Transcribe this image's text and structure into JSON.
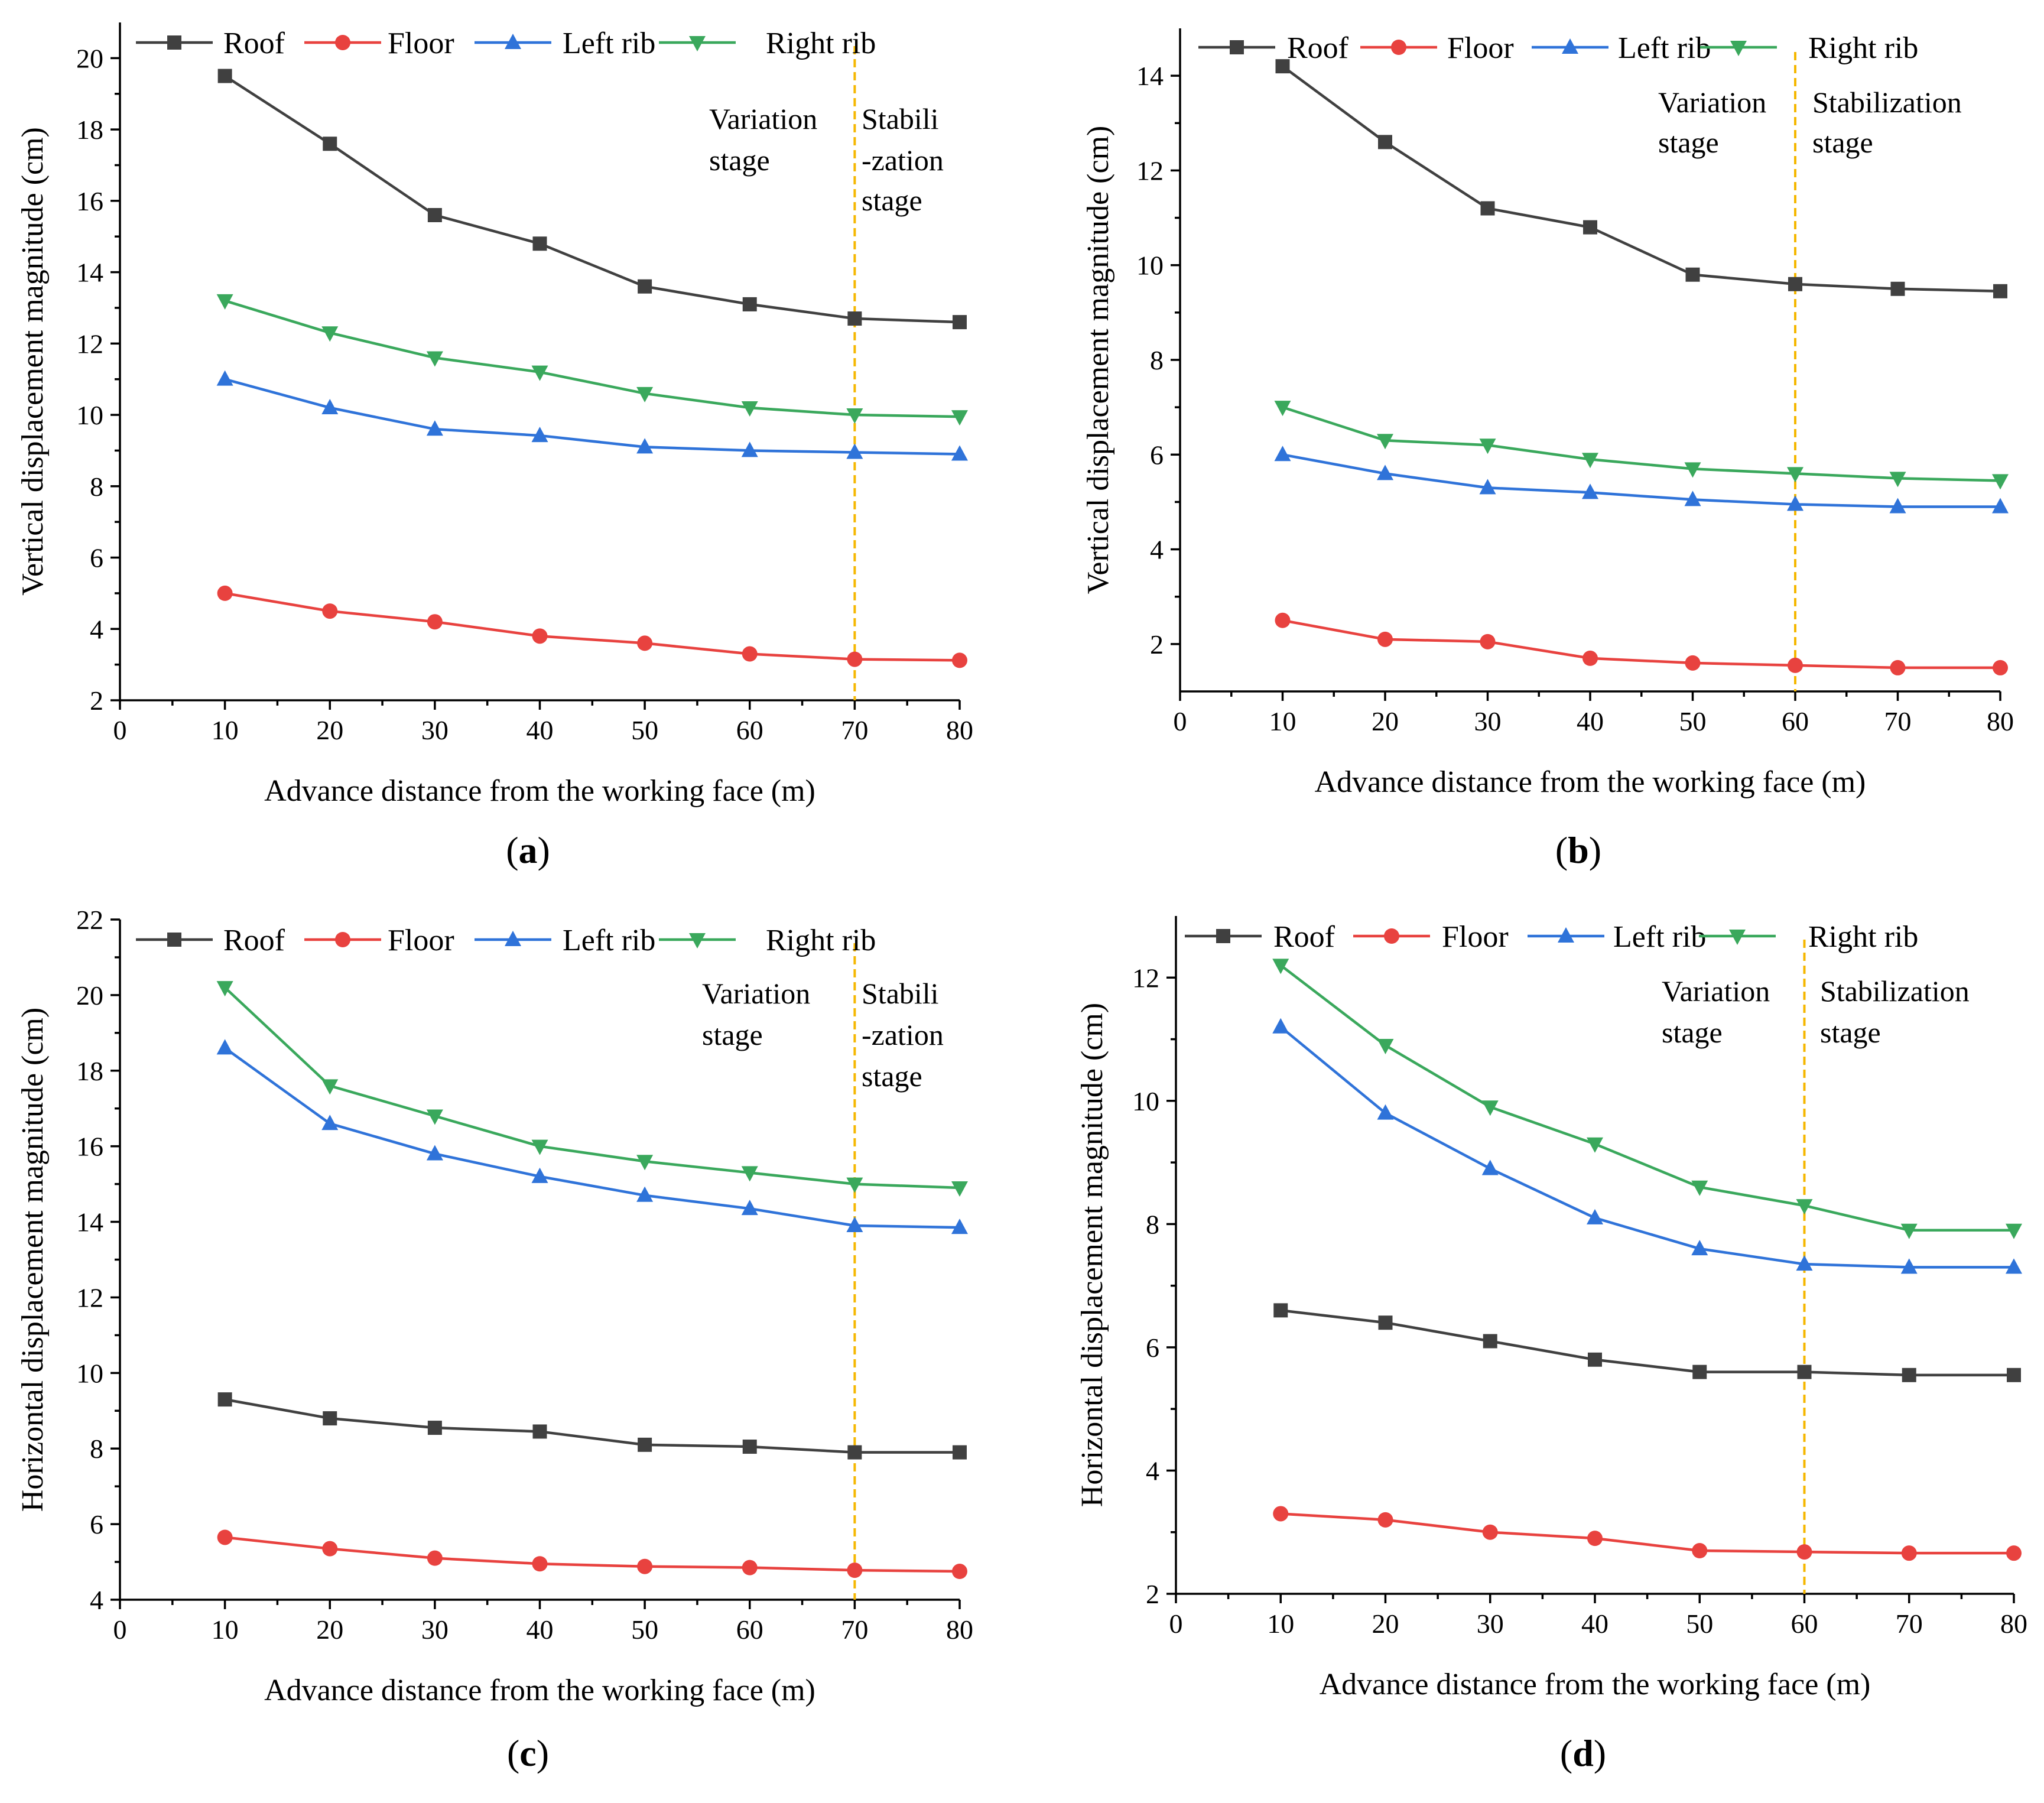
{
  "colors": {
    "Roof": "#404040",
    "Floor": "#e8423f",
    "Left rib": "#2f73d9",
    "Right rib": "#3aa85c",
    "stage_line": "#f5b700"
  },
  "markers": {
    "Roof": "square",
    "Floor": "circle",
    "Left rib": "triangle-up",
    "Right rib": "triangle-down"
  },
  "chart_data": [
    {
      "panel": "a",
      "type": "line",
      "label_open": "(",
      "label_letter": "a",
      "label_close": ")",
      "xlabel": "Advance distance from the working face (m)",
      "ylabel": "Vertical displacement magnitude (cm)",
      "xlim": [
        0,
        80
      ],
      "ylim": [
        2,
        21
      ],
      "xticks": [
        0,
        10,
        20,
        30,
        40,
        50,
        60,
        70,
        80
      ],
      "yticks": [
        2,
        4,
        6,
        8,
        10,
        12,
        14,
        16,
        18,
        20
      ],
      "x": [
        10,
        20,
        30,
        40,
        50,
        60,
        70,
        80
      ],
      "series": [
        {
          "name": "Roof",
          "values": [
            19.5,
            17.6,
            15.6,
            14.8,
            13.6,
            13.1,
            12.7,
            12.6
          ]
        },
        {
          "name": "Floor",
          "values": [
            5.0,
            4.5,
            4.2,
            3.8,
            3.6,
            3.3,
            3.15,
            3.12
          ]
        },
        {
          "name": "Left rib",
          "values": [
            11.0,
            10.2,
            9.6,
            9.42,
            9.1,
            9.0,
            8.95,
            8.9
          ]
        },
        {
          "name": "Right rib",
          "values": [
            13.2,
            12.3,
            11.6,
            11.2,
            10.6,
            10.2,
            10.0,
            9.95
          ]
        }
      ],
      "stage_x": 70,
      "stage_left": [
        "Variation",
        "stage"
      ],
      "stage_right": [
        "Stabili",
        "-zation",
        "stage"
      ]
    },
    {
      "panel": "b",
      "type": "line",
      "label_open": "(",
      "label_letter": "b",
      "label_close": ")",
      "xlabel": "Advance distance from the working face (m)",
      "ylabel": "Vertical displacement magnitude (cm)",
      "xlim": [
        0,
        80
      ],
      "ylim": [
        1,
        15
      ],
      "xticks": [
        0,
        10,
        20,
        30,
        40,
        50,
        60,
        70,
        80
      ],
      "yticks": [
        2,
        4,
        6,
        8,
        10,
        12,
        14
      ],
      "x": [
        10,
        20,
        30,
        40,
        50,
        60,
        70,
        80
      ],
      "series": [
        {
          "name": "Roof",
          "values": [
            14.2,
            12.6,
            11.2,
            10.8,
            9.8,
            9.6,
            9.5,
            9.45
          ]
        },
        {
          "name": "Floor",
          "values": [
            2.5,
            2.1,
            2.05,
            1.7,
            1.6,
            1.55,
            1.5,
            1.5
          ]
        },
        {
          "name": "Left rib",
          "values": [
            6.0,
            5.6,
            5.3,
            5.2,
            5.05,
            4.95,
            4.9,
            4.9
          ]
        },
        {
          "name": "Right rib",
          "values": [
            7.0,
            6.3,
            6.2,
            5.9,
            5.7,
            5.6,
            5.5,
            5.45
          ]
        }
      ],
      "stage_x": 60,
      "stage_left": [
        "Variation",
        "stage"
      ],
      "stage_right": [
        "Stabilization",
        "stage"
      ]
    },
    {
      "panel": "c",
      "type": "line",
      "label_open": "(",
      "label_letter": "c",
      "label_close": ")",
      "xlabel": "Advance distance from the working face (m)",
      "ylabel": "Horizontal displacement magnitude (cm)",
      "xlim": [
        0,
        80
      ],
      "ylim": [
        4,
        22
      ],
      "xticks": [
        0,
        10,
        20,
        30,
        40,
        50,
        60,
        70,
        80
      ],
      "yticks": [
        4,
        6,
        8,
        10,
        12,
        14,
        16,
        18,
        20,
        22
      ],
      "x": [
        10,
        20,
        30,
        40,
        50,
        60,
        70,
        80
      ],
      "series": [
        {
          "name": "Roof",
          "values": [
            9.3,
            8.8,
            8.55,
            8.45,
            8.1,
            8.05,
            7.9,
            7.9
          ]
        },
        {
          "name": "Floor",
          "values": [
            5.65,
            5.35,
            5.1,
            4.95,
            4.88,
            4.85,
            4.78,
            4.75
          ]
        },
        {
          "name": "Left rib",
          "values": [
            18.6,
            16.6,
            15.8,
            15.2,
            14.7,
            14.35,
            13.9,
            13.85
          ]
        },
        {
          "name": "Right rib",
          "values": [
            20.2,
            17.6,
            16.8,
            16.0,
            15.6,
            15.3,
            15.0,
            14.9
          ]
        }
      ],
      "stage_x": 70,
      "stage_left": [
        "Variation",
        "stage"
      ],
      "stage_right": [
        "Stabili",
        "-zation",
        "stage"
      ]
    },
    {
      "panel": "d",
      "type": "line",
      "label_open": "(",
      "label_letter": "d",
      "label_close": ")",
      "xlabel": "Advance distance from the working face (m)",
      "ylabel": "Horizontal displacement magnitude (cm)",
      "xlim": [
        0,
        80
      ],
      "ylim": [
        2,
        13
      ],
      "xticks": [
        0,
        10,
        20,
        30,
        40,
        50,
        60,
        70,
        80
      ],
      "yticks": [
        2,
        4,
        6,
        8,
        10,
        12
      ],
      "x": [
        10,
        20,
        30,
        40,
        50,
        60,
        70,
        80
      ],
      "series": [
        {
          "name": "Roof",
          "values": [
            6.6,
            6.4,
            6.1,
            5.8,
            5.6,
            5.6,
            5.55,
            5.55
          ]
        },
        {
          "name": "Floor",
          "values": [
            3.3,
            3.2,
            3.0,
            2.9,
            2.7,
            2.68,
            2.66,
            2.66
          ]
        },
        {
          "name": "Left rib",
          "values": [
            11.2,
            9.8,
            8.9,
            8.1,
            7.6,
            7.35,
            7.3,
            7.3
          ]
        },
        {
          "name": "Right rib",
          "values": [
            12.2,
            10.9,
            9.9,
            9.3,
            8.6,
            8.3,
            7.9,
            7.9
          ]
        }
      ],
      "stage_x": 60,
      "stage_left": [
        "Variation",
        "stage"
      ],
      "stage_right": [
        "Stabilization",
        "stage"
      ]
    }
  ]
}
